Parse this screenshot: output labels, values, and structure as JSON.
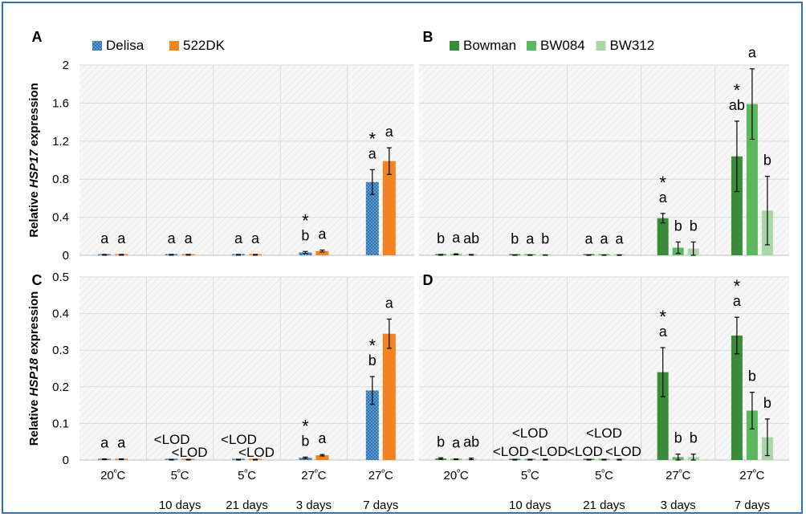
{
  "figure": {
    "border_color": "#2e75b6"
  },
  "x_tick_labels": {
    "temps": [
      "20ºC",
      "5ºC",
      "5ºC",
      "27ºC",
      "27ºC"
    ],
    "durations": [
      "",
      "10 days",
      "21 days",
      "3 days",
      "7 days"
    ]
  },
  "chart_data": [
    {
      "panel": "A",
      "type": "bar",
      "ylabel_prefix": "Relative ",
      "ylabel_gene": "HSP17",
      "ylabel_suffix": " expression",
      "ylim": [
        0,
        2
      ],
      "yticks": [
        "0",
        "0.4",
        "0.8",
        "1.2",
        "1.6",
        "2"
      ],
      "yticks_values": [
        0,
        0.4,
        0.8,
        1.2,
        1.6,
        2
      ],
      "grid": true,
      "legend_position": "top-left",
      "categories": [
        "20ºC",
        "5ºC 10 days",
        "5ºC 21 days",
        "27ºC 3 days",
        "27ºC 7 days"
      ],
      "series": [
        {
          "name": "Delisa",
          "color": "#2e75b6",
          "pattern": "dotted",
          "values": [
            0.005,
            0.005,
            0.005,
            0.03,
            0.77
          ],
          "errors": [
            0.004,
            0.004,
            0.004,
            0.01,
            0.13
          ],
          "letters": [
            "a",
            "a",
            "a",
            "b",
            "a"
          ],
          "stars": [
            false,
            false,
            false,
            true,
            true
          ]
        },
        {
          "name": "522DK",
          "color": "#f58220",
          "pattern": "solid",
          "values": [
            0.005,
            0.005,
            0.005,
            0.045,
            0.99
          ],
          "errors": [
            0.004,
            0.004,
            0.004,
            0.01,
            0.14
          ],
          "letters": [
            "a",
            "a",
            "a",
            "a",
            "a"
          ],
          "stars": [
            false,
            false,
            false,
            false,
            false
          ]
        }
      ]
    },
    {
      "panel": "B",
      "type": "bar",
      "ylim": [
        0,
        2
      ],
      "yticks_values": [
        0,
        0.4,
        0.8,
        1.2,
        1.6,
        2
      ],
      "grid": true,
      "legend_position": "top-center",
      "categories": [
        "20ºC",
        "5ºC 10 days",
        "5ºC 21 days",
        "27ºC 3 days",
        "27ºC 7 days"
      ],
      "series": [
        {
          "name": "Bowman",
          "color": "#3a8c3a",
          "pattern": "solid",
          "values": [
            0.005,
            0.002,
            0.002,
            0.39,
            1.04
          ],
          "errors": [
            0.004,
            0.002,
            0.002,
            0.05,
            0.37
          ],
          "letters": [
            "b",
            "b",
            "a",
            "a",
            "ab"
          ],
          "stars": [
            false,
            false,
            false,
            true,
            true
          ]
        },
        {
          "name": "BW084",
          "color": "#5cb85c",
          "pattern": "solid",
          "values": [
            0.01,
            0.002,
            0.002,
            0.08,
            1.59
          ],
          "errors": [
            0.005,
            0.002,
            0.002,
            0.06,
            0.37
          ],
          "letters": [
            "a",
            "a",
            "a",
            "b",
            "a"
          ],
          "stars": [
            false,
            false,
            false,
            false,
            false
          ]
        },
        {
          "name": "BW312",
          "color": "#a9d6a6",
          "pattern": "solid",
          "values": [
            0.005,
            0.002,
            0.002,
            0.07,
            0.47
          ],
          "errors": [
            0.003,
            0.002,
            0.002,
            0.07,
            0.36
          ],
          "letters": [
            "ab",
            "b",
            "a",
            "b",
            "b"
          ],
          "stars": [
            false,
            false,
            false,
            false,
            false
          ]
        }
      ]
    },
    {
      "panel": "C",
      "type": "bar",
      "ylabel_prefix": "Relative ",
      "ylabel_gene": "HSP18",
      "ylabel_suffix": " expression",
      "ylim": [
        0,
        0.5
      ],
      "yticks": [
        "0",
        "0.1",
        "0.2",
        "0.3",
        "0.4",
        "0.5"
      ],
      "yticks_values": [
        0,
        0.1,
        0.2,
        0.3,
        0.4,
        0.5
      ],
      "grid": true,
      "categories": [
        "20ºC",
        "5ºC 10 days",
        "5ºC 21 days",
        "27ºC 3 days",
        "27ºC 7 days"
      ],
      "series": [
        {
          "name": "Delisa",
          "color": "#2e75b6",
          "pattern": "dotted",
          "values": [
            0.002,
            0.001,
            0.001,
            0.006,
            0.19
          ],
          "errors": [
            0.001,
            0.001,
            0.001,
            0.002,
            0.038
          ],
          "letters": [
            "a",
            "<LOD",
            "<LOD",
            "b",
            "b"
          ],
          "stars": [
            false,
            false,
            false,
            true,
            true
          ]
        },
        {
          "name": "522DK",
          "color": "#f58220",
          "pattern": "solid",
          "values": [
            0.002,
            0.001,
            0.001,
            0.013,
            0.345
          ],
          "errors": [
            0.001,
            0.001,
            0.001,
            0.002,
            0.04
          ],
          "letters": [
            "a",
            "<LOD",
            "<LOD",
            "a",
            "a"
          ],
          "stars": [
            false,
            false,
            false,
            false,
            false
          ]
        }
      ]
    },
    {
      "panel": "D",
      "type": "bar",
      "ylim": [
        0,
        0.5
      ],
      "yticks_values": [
        0,
        0.1,
        0.2,
        0.3,
        0.4,
        0.5
      ],
      "grid": true,
      "categories": [
        "20ºC",
        "5ºC 10 days",
        "5ºC 21 days",
        "27ºC 3 days",
        "27ºC 7 days"
      ],
      "series": [
        {
          "name": "Bowman",
          "color": "#3a8c3a",
          "pattern": "solid",
          "values": [
            0.004,
            0.001,
            0.001,
            0.24,
            0.34
          ],
          "errors": [
            0.002,
            0.001,
            0.001,
            0.067,
            0.05
          ],
          "letters": [
            "b",
            "<LOD",
            "<LOD",
            "a",
            "a"
          ],
          "stars": [
            false,
            false,
            false,
            true,
            true
          ]
        },
        {
          "name": "BW084",
          "color": "#5cb85c",
          "pattern": "solid",
          "values": [
            0.002,
            0.001,
            0.001,
            0.008,
            0.135
          ],
          "errors": [
            0.001,
            0.001,
            0.001,
            0.008,
            0.05
          ],
          "letters": [
            "a",
            "<LOD",
            "<LOD",
            "b",
            "b"
          ],
          "stars": [
            false,
            false,
            false,
            false,
            false
          ]
        },
        {
          "name": "BW312",
          "color": "#a9d6a6",
          "pattern": "solid",
          "values": [
            0.003,
            0.001,
            0.001,
            0.008,
            0.062
          ],
          "errors": [
            0.002,
            0.001,
            0.001,
            0.008,
            0.05
          ],
          "letters": [
            "ab",
            "<LOD",
            "<LOD",
            "b",
            "b"
          ],
          "stars": [
            false,
            false,
            false,
            false,
            false
          ]
        }
      ]
    }
  ]
}
